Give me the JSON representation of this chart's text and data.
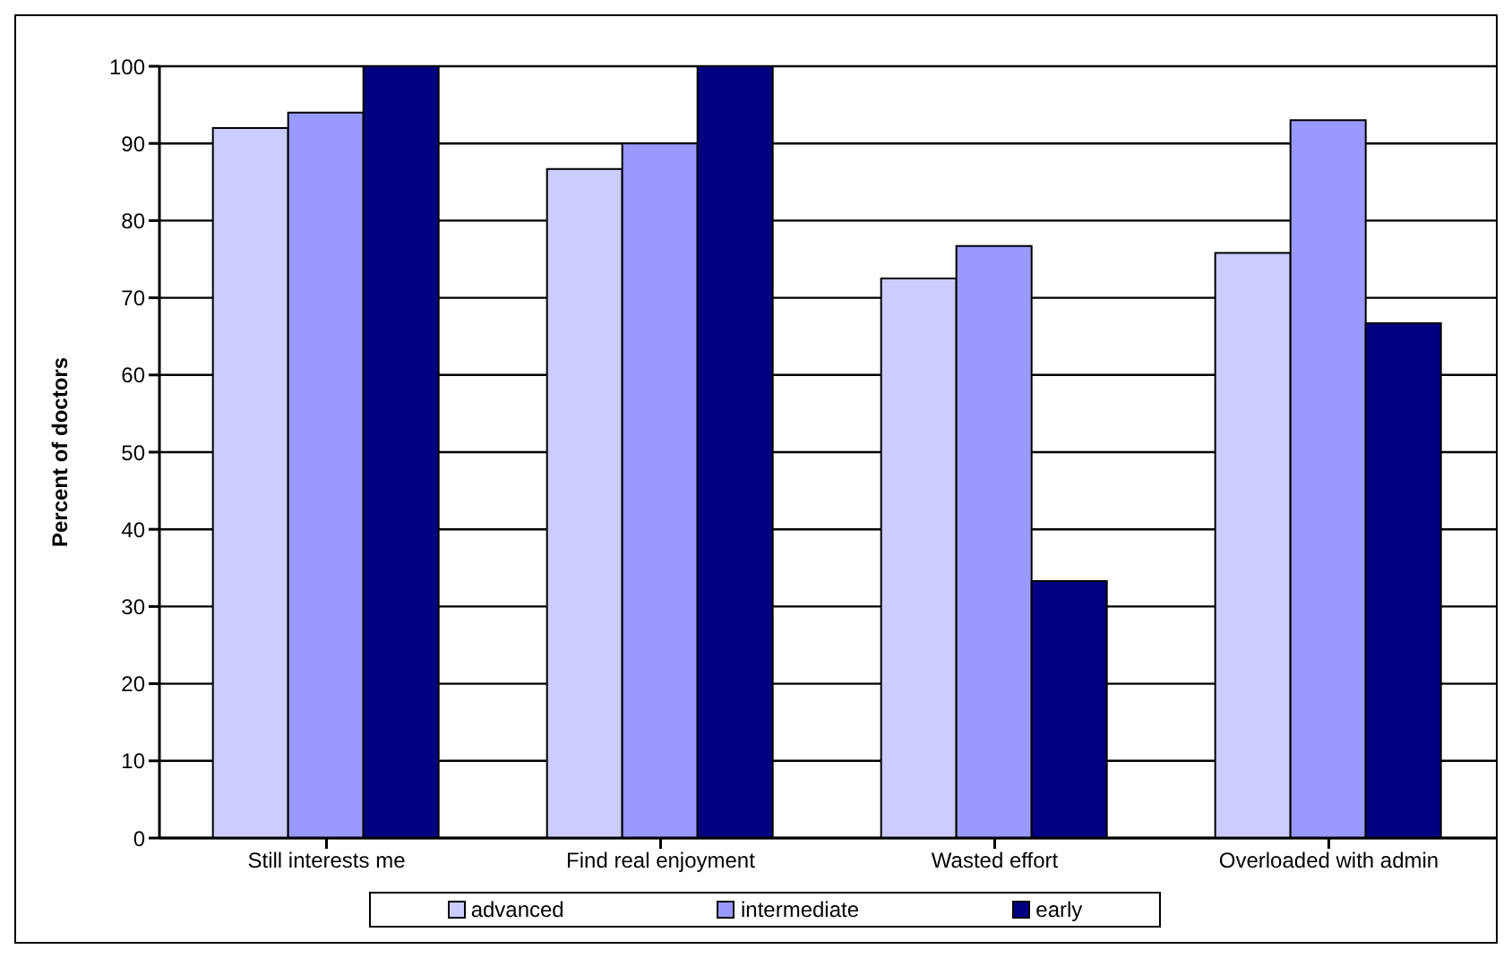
{
  "chart_data": {
    "type": "bar",
    "ylabel": "Percent of doctors",
    "categories": [
      "Still interests me",
      "Find real enjoyment",
      "Wasted effort",
      "Overloaded with admin"
    ],
    "series": [
      {
        "name": "advanced",
        "color": "#ccccff",
        "values": [
          92,
          86.7,
          72.5,
          75.8
        ]
      },
      {
        "name": "intermediate",
        "color": "#9999ff",
        "values": [
          94,
          90,
          76.7,
          93
        ]
      },
      {
        "name": "early",
        "color": "#000080",
        "values": [
          100,
          100,
          33.3,
          66.7
        ]
      }
    ],
    "ylim": [
      0,
      100
    ],
    "yticks": [
      0,
      10,
      20,
      30,
      40,
      50,
      60,
      70,
      80,
      90,
      100
    ],
    "grid": "y",
    "legend": "bottom"
  }
}
